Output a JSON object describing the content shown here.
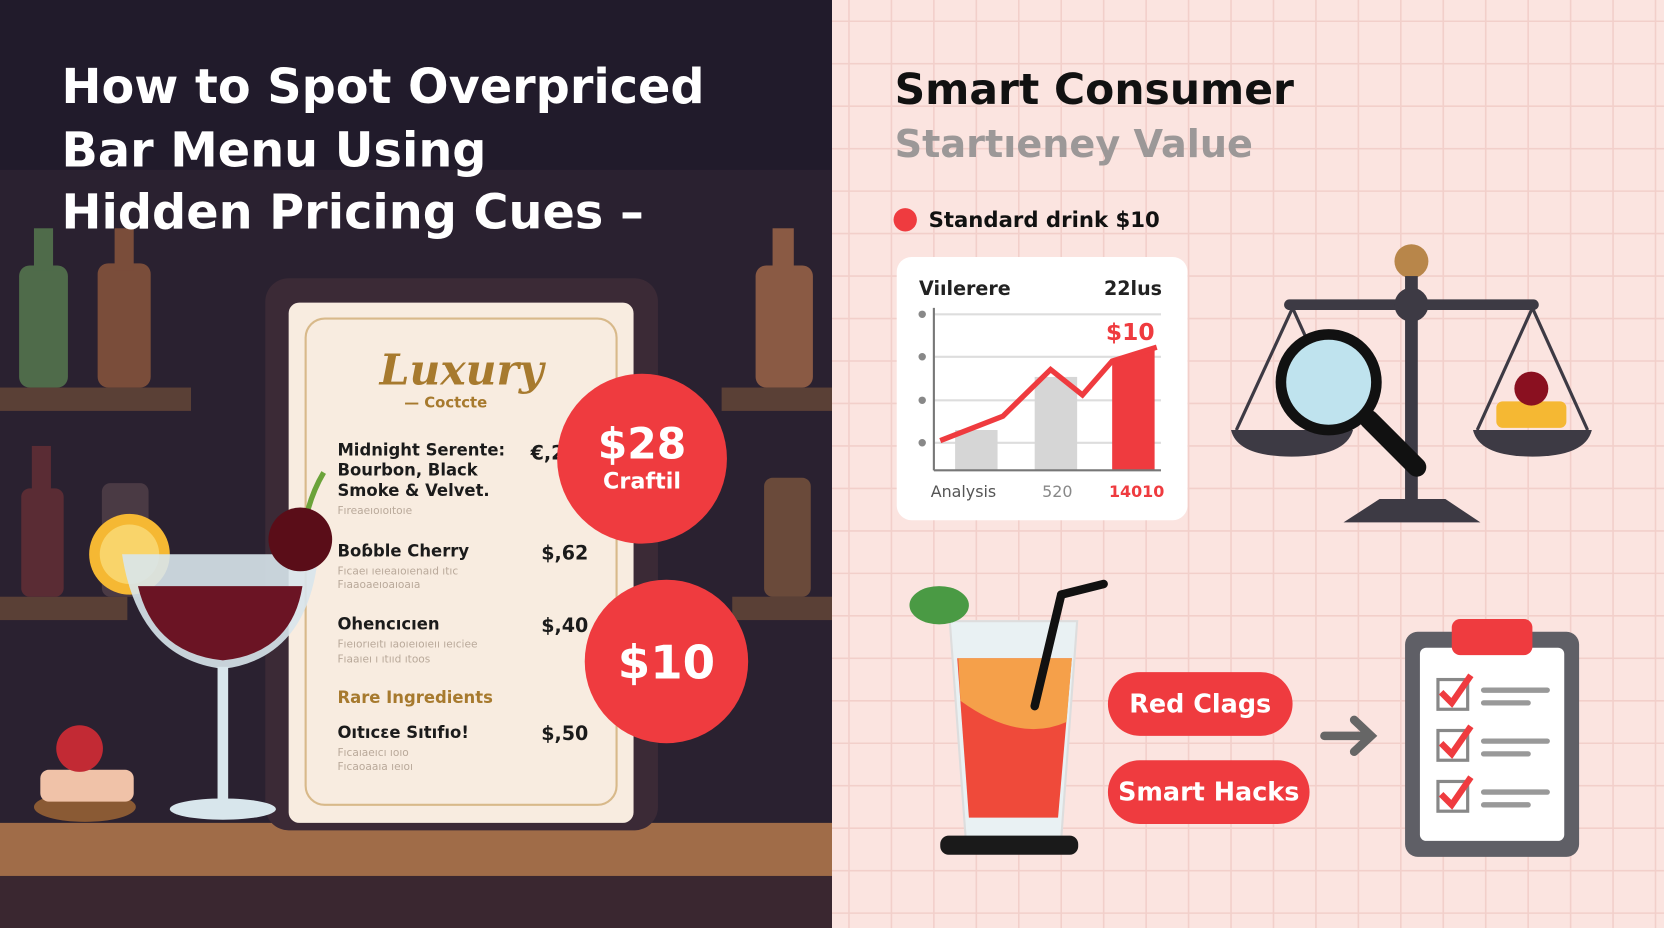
{
  "left": {
    "title_lines": [
      "How to Spot Overpriced",
      "Bar Menu Using",
      "Hidden Pricing Cues –"
    ],
    "menu": {
      "title": "Luxury",
      "subtitle": "— Coctcte",
      "items": [
        {
          "name_lines": [
            "Midnight Serente:",
            "Bourbon, Black",
            "Smoke & Velvet."
          ],
          "price": "€,2",
          "desc_lines": [
            "Fıreaeıoıoıtoıe"
          ]
        },
        {
          "name_lines": [
            "Boɓble Cherry"
          ],
          "price": "$,62",
          "desc_lines": [
            "Fıcaeı ıeıeaıoıenaıd ıtıc",
            "Fıaaoaeıoaıoaıa"
          ]
        },
        {
          "name_lines": [
            "Ohencıcıen"
          ],
          "price": "$,40",
          "desc_lines": [
            "Fıeıorıeıtı ıaoıeıoıeıı ıeıciee",
            "Fıaaıeı ı ıtııd ıtoos"
          ]
        },
        {
          "name_lines": [
            "Oıtıcεe Sıtıfıo!"
          ],
          "price": "$,50",
          "desc_lines": [
            "Fıcaıaeıcı ıoıo",
            "Fıcaoaaıa ıeıoı"
          ]
        }
      ],
      "section": "Rare Ingredients"
    },
    "badges": [
      {
        "price": "$28",
        "label": "Craftil"
      },
      {
        "price": "$10"
      }
    ]
  },
  "right": {
    "title": "Smart Consumer",
    "subtitle": "Startıeney Value",
    "legend": "Standard drink $10",
    "card": {
      "header_left": "Viılerere",
      "header_right": "22lus",
      "highlight": "$10",
      "footer": [
        "Analysis",
        "520",
        "14010"
      ]
    },
    "buttons": [
      "Red Clags",
      "Smart Hacks"
    ]
  }
}
